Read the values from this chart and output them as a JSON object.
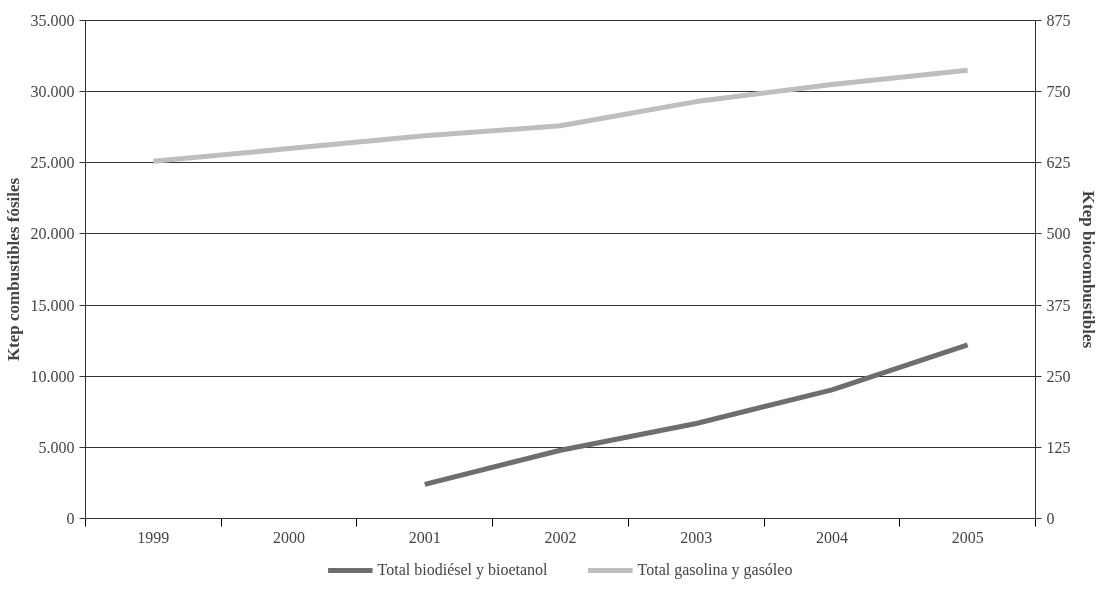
{
  "chart_data": {
    "type": "line",
    "categories": [
      "1999",
      "2000",
      "2001",
      "2002",
      "2003",
      "2004",
      "2005"
    ],
    "ylabel": "Ktep combustibles fósiles",
    "y2label": "Ktep biocombustibles",
    "ylim": [
      0,
      35000
    ],
    "yticks": [
      {
        "value": 0,
        "label": "0"
      },
      {
        "value": 5000,
        "label": "5.000"
      },
      {
        "value": 10000,
        "label": "10.000"
      },
      {
        "value": 15000,
        "label": "15.000"
      },
      {
        "value": 20000,
        "label": "20.000"
      },
      {
        "value": 25000,
        "label": "25.000"
      },
      {
        "value": 30000,
        "label": "30.000"
      },
      {
        "value": 35000,
        "label": "35.000"
      }
    ],
    "y2lim": [
      0,
      875
    ],
    "y2ticks": [
      0,
      125,
      250,
      375,
      500,
      625,
      750,
      875
    ],
    "series": [
      {
        "name": "Total biodiésel y bioetanol",
        "color": "#6d6e71",
        "axis": "y2",
        "values": [
          null,
          null,
          60,
          120,
          167,
          226,
          305
        ]
      },
      {
        "name": "Total gasolina y gasóleo",
        "color": "#bcbec0",
        "values": [
          25100,
          26000,
          26900,
          27600,
          29300,
          30500,
          31500
        ]
      }
    ],
    "grid": "y",
    "legend": "bottom",
    "marker": "none",
    "line_style": "solid"
  }
}
